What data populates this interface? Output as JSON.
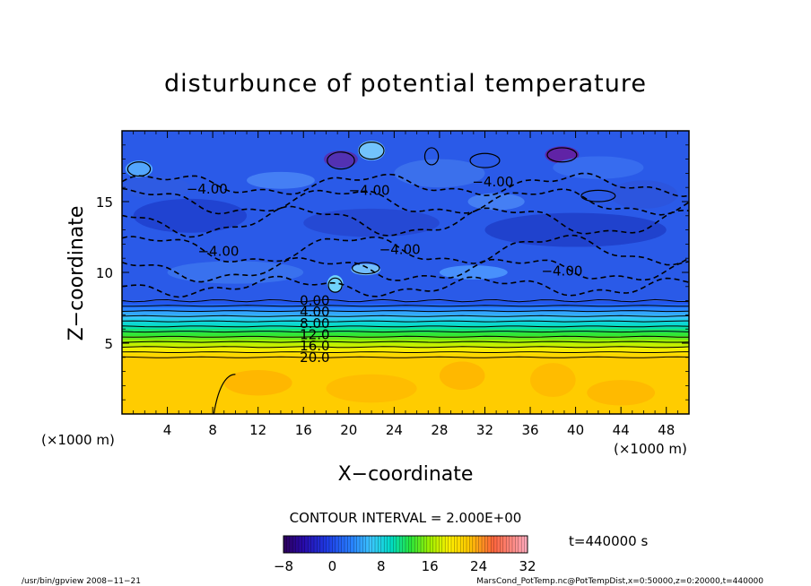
{
  "chart_data": {
    "type": "heatmap",
    "title": "disturbunce of potential temperature",
    "xlabel": "X−coordinate",
    "ylabel": "Z−coordinate",
    "x_unit_left": "(×1000 m)",
    "x_unit_right": "(×1000 m)",
    "xlim": [
      0,
      50
    ],
    "ylim": [
      0,
      20
    ],
    "x_ticks": [
      4,
      8,
      12,
      16,
      20,
      24,
      28,
      32,
      36,
      40,
      44,
      48
    ],
    "y_ticks": [
      5,
      10,
      15
    ],
    "contour_interval_text": "CONTOUR INTERVAL = 2.000E+00",
    "time_text": "t=440000 s",
    "colorbar": {
      "min": -8,
      "max": 32,
      "tick_values": [
        -8,
        0,
        8,
        16,
        24,
        32
      ],
      "tick_labels": [
        "−8",
        "0",
        "8",
        "16",
        "24",
        "32"
      ]
    },
    "contour_labels": [
      {
        "text": "−4.00",
        "x": 7.5,
        "z": 15.9
      },
      {
        "text": "−4.00",
        "x": 21.8,
        "z": 15.8
      },
      {
        "text": "−4.00",
        "x": 32.7,
        "z": 16.4
      },
      {
        "text": "−4.00",
        "x": 8.5,
        "z": 11.5
      },
      {
        "text": "−4.00",
        "x": 24.5,
        "z": 11.6
      },
      {
        "text": "−4.00",
        "x": 38.8,
        "z": 10.1
      },
      {
        "text": "0.00",
        "x": 17.0,
        "z": 8.0
      },
      {
        "text": "4.00",
        "x": 17.0,
        "z": 7.2
      },
      {
        "text": "8.00",
        "x": 17.0,
        "z": 6.4
      },
      {
        "text": "12.0",
        "x": 17.0,
        "z": 5.6
      },
      {
        "text": "16.0",
        "x": 17.0,
        "z": 4.8
      },
      {
        "text": "20.0",
        "x": 17.0,
        "z": 4.0
      }
    ],
    "description_levels": {
      "upper_layer_value": -4,
      "transition_bottom_z": 4,
      "transition_top_z": 8,
      "lower_layer_value": 22
    }
  },
  "footer": {
    "left": "/usr/bin/gpview   2008−11−21",
    "right": "MarsCond_PotTemp.nc@PotTempDist,x=0:50000,z=0:20000,t=440000"
  },
  "colors": {
    "upper": "#2a5ae8",
    "lower": "#ffcc00",
    "background": "#ffffff"
  }
}
